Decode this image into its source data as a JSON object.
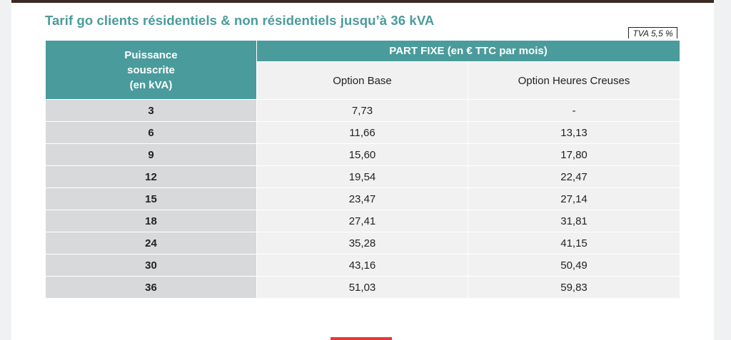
{
  "title": "Tarif go clients résidentiels & non résidentiels jusqu’à 36 kVA",
  "tva_label": "TVA 5,5 %",
  "header": {
    "power_lines": [
      "Puissance",
      "souscrite",
      "(en kVA)"
    ],
    "fixed_part": "PART FIXE (en € TTC par mois)",
    "option_base": "Option Base",
    "option_hc": "Option Heures Creuses"
  },
  "rows": [
    {
      "kva": "3",
      "base": "7,73",
      "hc": "-"
    },
    {
      "kva": "6",
      "base": "11,66",
      "hc": "13,13"
    },
    {
      "kva": "9",
      "base": "15,60",
      "hc": "17,80"
    },
    {
      "kva": "12",
      "base": "19,54",
      "hc": "22,47"
    },
    {
      "kva": "15",
      "base": "23,47",
      "hc": "27,14"
    },
    {
      "kva": "18",
      "base": "27,41",
      "hc": "31,81"
    },
    {
      "kva": "24",
      "base": "35,28",
      "hc": "41,15"
    },
    {
      "kva": "30",
      "base": "43,16",
      "hc": "50,49"
    },
    {
      "kva": "36",
      "base": "51,03",
      "hc": "59,83"
    }
  ],
  "colors": {
    "accent": "#4a9b9c",
    "header_text": "#ffffff",
    "kva_cell_bg": "#d8d9db",
    "value_cell_bg": "#f1f1f2",
    "bottom_mark": "#e53935"
  }
}
